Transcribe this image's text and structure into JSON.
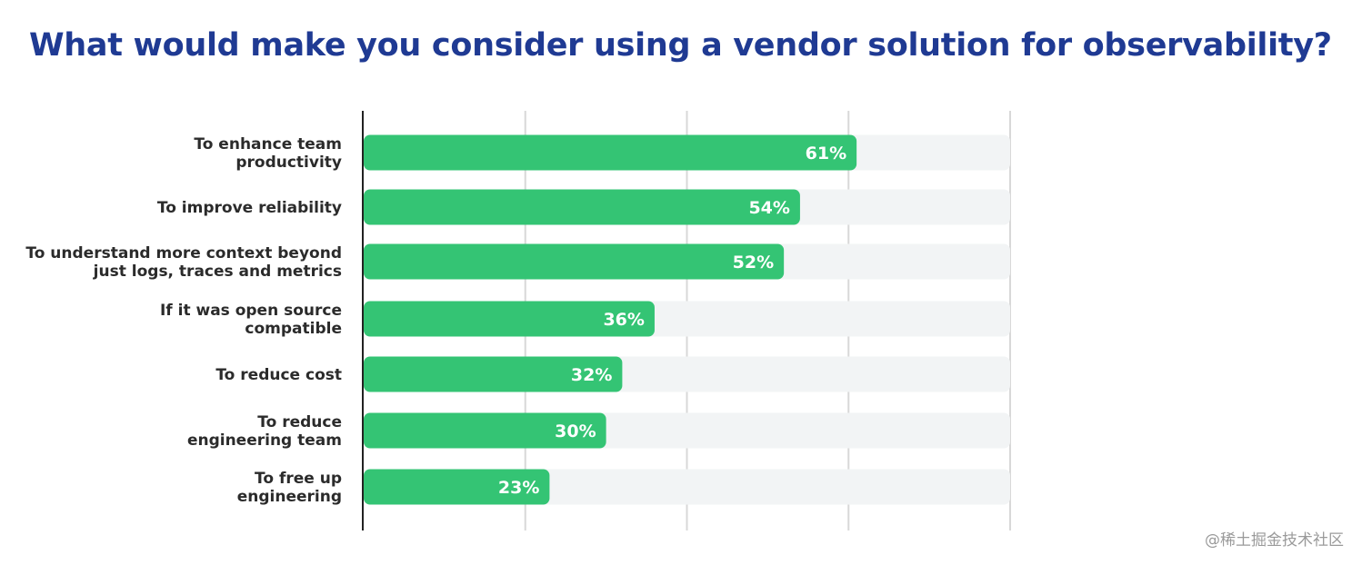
{
  "colors": {
    "title": "#1f3a93",
    "bar": "#34c474",
    "track": "#f2f4f5",
    "grid": "#d8d8d8",
    "axis": "#222222",
    "label": "#2b2b2b"
  },
  "chart_data": {
    "type": "bar",
    "orientation": "horizontal",
    "title": "What would make you consider using a vendor solution for observability?",
    "categories": [
      [
        "To enhance team",
        "productivity"
      ],
      [
        "To improve reliability"
      ],
      [
        "To understand more context beyond",
        "just logs, traces and metrics"
      ],
      [
        "If it was open source",
        "compatible"
      ],
      [
        "To reduce cost"
      ],
      [
        "To reduce",
        "engineering team"
      ],
      [
        "To free up",
        "engineering"
      ]
    ],
    "values": [
      61,
      54,
      52,
      36,
      32,
      30,
      23
    ],
    "value_labels": [
      "61%",
      "54%",
      "52%",
      "36%",
      "32%",
      "30%",
      "23%"
    ],
    "xlim": [
      0,
      80
    ],
    "grid": true,
    "xlabel": "",
    "ylabel": ""
  },
  "watermark": "@稀土掘金技术社区"
}
